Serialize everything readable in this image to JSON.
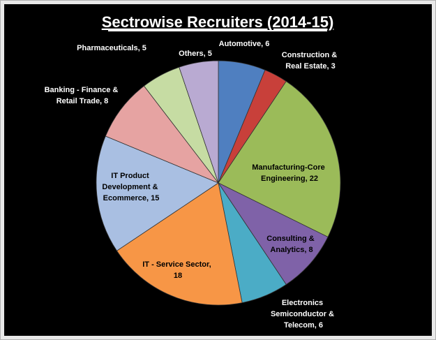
{
  "chart_data": {
    "type": "pie",
    "title": "Sectrowise Recruiters (2014-15)",
    "labels": [
      "Automotive, 6",
      "Construction & Real Estate, 3",
      "Manufacturing-Core Engineering, 22",
      "Consulting & Analytics, 8",
      "Electronics Semiconductor & Telecom, 6",
      "IT - Service Sector, 18",
      "IT Product Development & Ecommerce, 15",
      "Banking - Finance & Retail Trade, 8",
      "Pharmaceuticals, 5",
      "Others, 5"
    ],
    "values": [
      6,
      3,
      22,
      8,
      6,
      18,
      15,
      8,
      5,
      5
    ],
    "colors": [
      "#4f7fc0",
      "#c8403a",
      "#9bbb59",
      "#7f62a8",
      "#4bacc6",
      "#f79646",
      "#a9bfe2",
      "#e6a3a2",
      "#c6dca3",
      "#b9aad2"
    ]
  }
}
